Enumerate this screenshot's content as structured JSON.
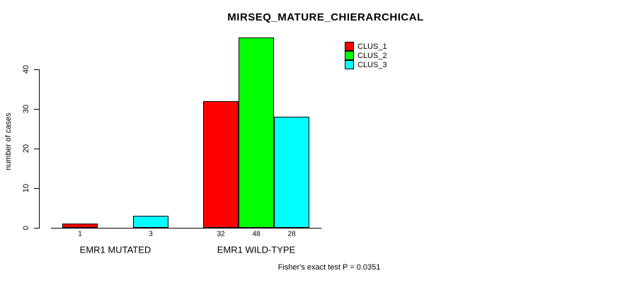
{
  "chart_data": {
    "type": "bar",
    "title": "MIRSEQ_MATURE_CHIERARCHICAL",
    "ylabel": "number of cases",
    "xlabel": "",
    "categories": [
      "EMR1 MUTATED",
      "EMR1 WILD-TYPE"
    ],
    "series": [
      {
        "name": "CLUS_1",
        "color": "#ff0000",
        "values": [
          1,
          32
        ]
      },
      {
        "name": "CLUS_2",
        "color": "#00ff00",
        "values": [
          0,
          48
        ]
      },
      {
        "name": "CLUS_3",
        "color": "#00ffff",
        "values": [
          3,
          28
        ]
      }
    ],
    "y_ticks": [
      0,
      10,
      20,
      30,
      40
    ],
    "ylim": [
      0,
      48
    ],
    "grid": false,
    "legend_position": "top-right",
    "annotation": "Fisher's exact test P = 0.0351"
  }
}
